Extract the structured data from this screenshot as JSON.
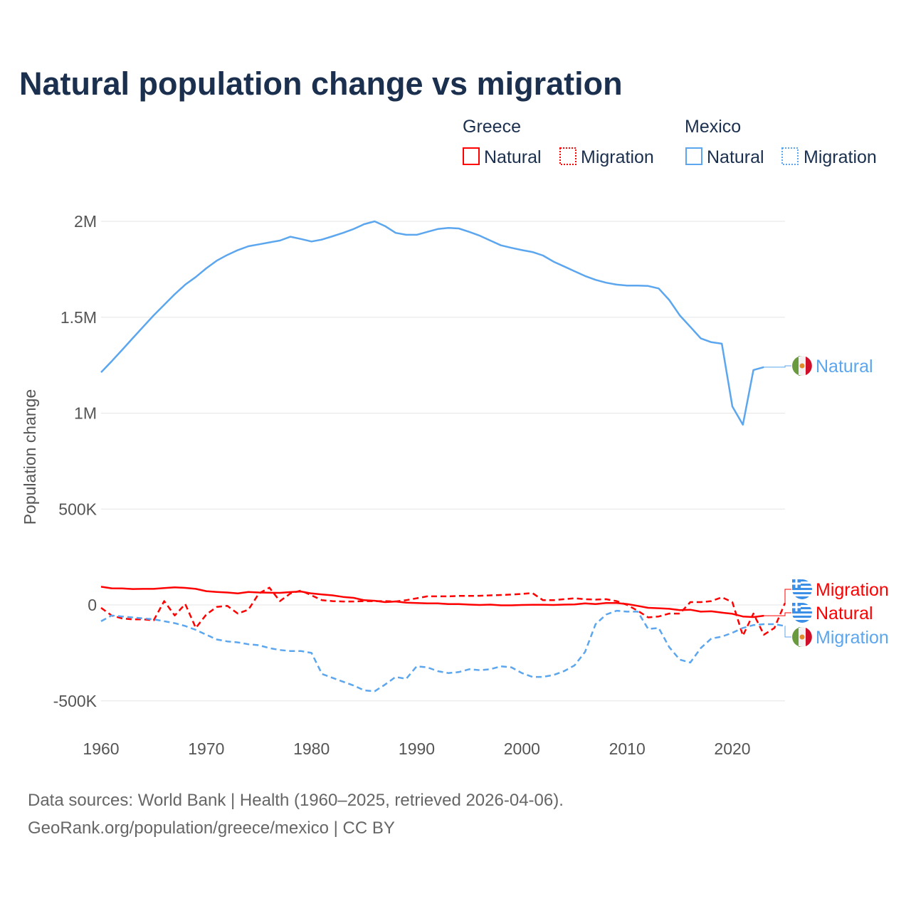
{
  "title": "Natural population change vs migration",
  "legend": {
    "groups": [
      {
        "name": "Greece",
        "items": [
          "Natural",
          "Migration"
        ]
      },
      {
        "name": "Mexico",
        "items": [
          "Natural",
          "Migration"
        ]
      }
    ]
  },
  "footer": {
    "line1": "Data sources: World Bank | Health (1960–2025, retrieved 2026-04-06).",
    "line2": "GeoRank.org/population/greece/mexico | CC BY"
  },
  "chart_data": {
    "type": "line",
    "title": "Natural population change vs migration",
    "xlabel": "",
    "ylabel": "Population change",
    "xlim": [
      1960,
      2025
    ],
    "ylim": [
      -600000,
      2100000
    ],
    "x_ticks": [
      1960,
      1970,
      1980,
      1990,
      2000,
      2010,
      2020
    ],
    "x_tick_labels": [
      "1960",
      "1970",
      "1980",
      "1990",
      "2000",
      "2010",
      "2020"
    ],
    "y_ticks": [
      -500000,
      0,
      500000,
      1000000,
      1500000,
      2000000
    ],
    "y_tick_labels": [
      "-500K",
      "0",
      "500K",
      "1M",
      "1.5M",
      "2M"
    ],
    "grid": true,
    "colors": {
      "greece": "#ff0000",
      "mexico": "#5ba6ee"
    },
    "series": [
      {
        "name": "Mexico Natural",
        "label": "Natural",
        "country": "mexico",
        "dash": false,
        "start": 1960,
        "values": [
          1213000,
          1270000,
          1330000,
          1390000,
          1450000,
          1510000,
          1565000,
          1620000,
          1670000,
          1710000,
          1755000,
          1795000,
          1825000,
          1850000,
          1870000,
          1880000,
          1890000,
          1900000,
          1920000,
          1908000,
          1895000,
          1905000,
          1922000,
          1940000,
          1960000,
          1985000,
          2000000,
          1975000,
          1940000,
          1930000,
          1930000,
          1945000,
          1960000,
          1966000,
          1963000,
          1945000,
          1925000,
          1900000,
          1875000,
          1862000,
          1850000,
          1840000,
          1822000,
          1790000,
          1765000,
          1740000,
          1715000,
          1695000,
          1680000,
          1670000,
          1665000,
          1665000,
          1663000,
          1650000,
          1590000,
          1510000,
          1450000,
          1390000,
          1370000,
          1362000,
          1035000,
          940000,
          1225000,
          1240000
        ]
      },
      {
        "name": "Greece Natural",
        "label": "Natural",
        "country": "greece",
        "dash": false,
        "start": 1960,
        "values": [
          95000,
          87000,
          86000,
          83000,
          84000,
          84000,
          88000,
          92000,
          89000,
          84000,
          72000,
          68000,
          65000,
          60000,
          68000,
          65000,
          64000,
          63000,
          67000,
          70000,
          60000,
          55000,
          50000,
          42000,
          37000,
          25000,
          22000,
          15000,
          18000,
          12000,
          10000,
          8000,
          8000,
          5000,
          5000,
          2000,
          0,
          2000,
          -2000,
          -2000,
          0,
          1000,
          1000,
          0,
          2000,
          3000,
          8000,
          5000,
          10000,
          10000,
          5000,
          -5000,
          -15000,
          -17000,
          -20000,
          -27000,
          -25000,
          -35000,
          -33000,
          -40000,
          -46000,
          -60000,
          -63000,
          -56000
        ]
      },
      {
        "name": "Greece Migration",
        "label": "Migration",
        "country": "greece",
        "dash": true,
        "start": 1960,
        "values": [
          -15000,
          -55000,
          -70000,
          -75000,
          -75000,
          -80000,
          20000,
          -55000,
          5000,
          -120000,
          -50000,
          -10000,
          -5000,
          -45000,
          -25000,
          60000,
          90000,
          20000,
          60000,
          75000,
          50000,
          25000,
          20000,
          18000,
          18000,
          20000,
          20000,
          20000,
          18000,
          25000,
          35000,
          45000,
          45000,
          45000,
          47000,
          47000,
          48000,
          50000,
          52000,
          54000,
          58000,
          62000,
          25000,
          25000,
          30000,
          35000,
          30000,
          28000,
          30000,
          20000,
          0,
          -30000,
          -65000,
          -60000,
          -45000,
          -45000,
          15000,
          15000,
          20000,
          40000,
          15000,
          -160000,
          -45000,
          -155000,
          -120000,
          10000
        ]
      },
      {
        "name": "Mexico Migration",
        "label": "Migration",
        "country": "mexico",
        "dash": true,
        "start": 1960,
        "values": [
          -85000,
          -55000,
          -60000,
          -65000,
          -70000,
          -75000,
          -85000,
          -95000,
          -110000,
          -130000,
          -155000,
          -180000,
          -190000,
          -195000,
          -205000,
          -210000,
          -225000,
          -235000,
          -240000,
          -240000,
          -250000,
          -360000,
          -380000,
          -400000,
          -420000,
          -445000,
          -450000,
          -415000,
          -375000,
          -385000,
          -320000,
          -325000,
          -345000,
          -355000,
          -350000,
          -335000,
          -340000,
          -335000,
          -320000,
          -325000,
          -355000,
          -375000,
          -375000,
          -365000,
          -345000,
          -315000,
          -245000,
          -100000,
          -50000,
          -30000,
          -35000,
          -35000,
          -125000,
          -120000,
          -220000,
          -285000,
          -300000,
          -225000,
          -175000,
          -165000,
          -145000,
          -120000,
          -105000,
          -100000,
          -100000,
          -110000
        ]
      }
    ]
  }
}
